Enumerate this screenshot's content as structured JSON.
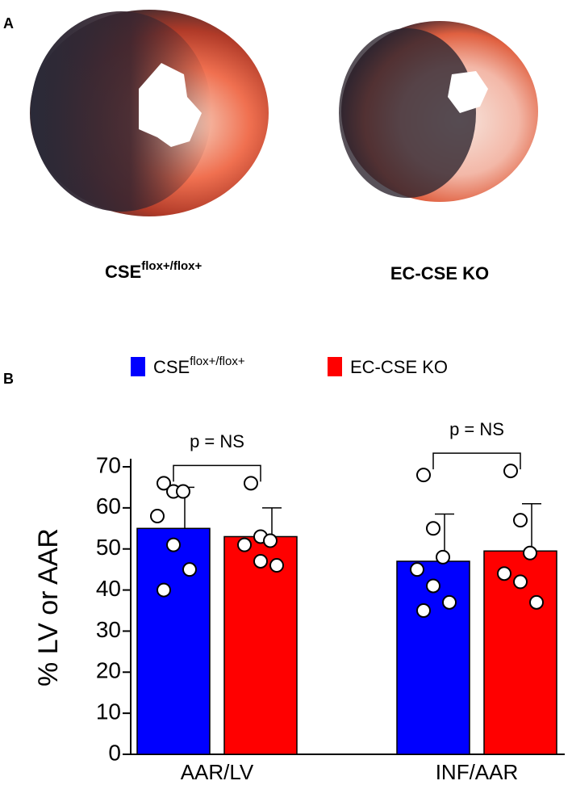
{
  "panel_a": {
    "label": "A",
    "captions": [
      {
        "base": "CSE",
        "superscript": "flox+/flox+"
      },
      {
        "base": "EC-CSE KO"
      }
    ]
  },
  "panel_b": {
    "label": "B"
  },
  "chart_data": {
    "type": "bar",
    "y_label": "% LV or AAR",
    "categories": [
      "AAR/LV",
      "INF/AAR"
    ],
    "series": [
      {
        "name": "CSE",
        "name_superscript": "flox+/flox+",
        "color": "#0000ff",
        "values": [
          55,
          47
        ],
        "errors": [
          10,
          11.5
        ],
        "points": [
          [
            66,
            64,
            64,
            58,
            51,
            45,
            40
          ],
          [
            68,
            55,
            48,
            45,
            41,
            37,
            35
          ]
        ]
      },
      {
        "name": "EC-CSE KO",
        "color": "#ff0000",
        "values": [
          53,
          49.5
        ],
        "errors": [
          7,
          11.5
        ],
        "points": [
          [
            66,
            53,
            52,
            51,
            47,
            46
          ],
          [
            69,
            57,
            49,
            44,
            42,
            37
          ]
        ]
      }
    ],
    "annotations": [
      "p = NS",
      "p = NS"
    ],
    "ylim": [
      0,
      70
    ],
    "yticks": [
      0,
      10,
      20,
      30,
      40,
      50,
      60,
      70
    ]
  }
}
